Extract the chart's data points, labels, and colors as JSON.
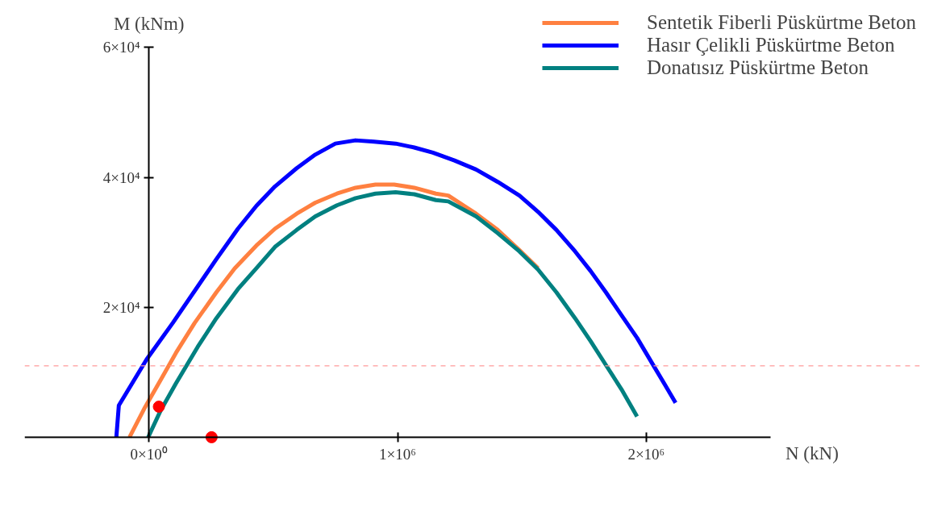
{
  "chart_data": {
    "type": "line",
    "xlabel": "N (kN)",
    "ylabel": "M (kNm)",
    "xlim": [
      -500000,
      2500000
    ],
    "ylim": [
      0,
      60000
    ],
    "xticks": [
      {
        "value": 0,
        "label": "0×10⁰"
      },
      {
        "value": 1000000,
        "label": "1×10⁶"
      },
      {
        "value": 2000000,
        "label": "2×10⁶"
      }
    ],
    "yticks": [
      {
        "value": 20000,
        "label": "2×10⁴"
      },
      {
        "value": 40000,
        "label": "4×10⁴"
      },
      {
        "value": 60000,
        "label": "6×10⁴"
      }
    ],
    "grid": false,
    "legend": "top right",
    "marker": "none",
    "line_style": "solid",
    "series": [
      {
        "name": "Sentetik Fiberli Püskürtme Beton",
        "color": "#ff8040",
        "x": [
          -78000,
          -16000,
          47000,
          109000,
          184000,
          271000,
          345000,
          432000,
          507000,
          594000,
          669000,
          756000,
          831000,
          911000,
          986000,
          1067000,
          1154000,
          1204000,
          1316000,
          1403000,
          1490000,
          1565000
        ],
        "values": [
          0,
          4600,
          8800,
          13000,
          17600,
          22300,
          26000,
          29500,
          32100,
          34400,
          36100,
          37500,
          38400,
          38900,
          38900,
          38400,
          37500,
          37200,
          34400,
          31900,
          28800,
          26000
        ]
      },
      {
        "name": "Hasır Çelikli Püskürtme Beton",
        "color": "#0000ff",
        "x": [
          -131000,
          -121000,
          -9000,
          96000,
          196000,
          271000,
          358000,
          432000,
          507000,
          594000,
          669000,
          750000,
          831000,
          905000,
          992000,
          1067000,
          1142000,
          1229000,
          1316000,
          1403000,
          1490000,
          1565000,
          1639000,
          1714000,
          1776000,
          1838000,
          1900000,
          1963000,
          2025000,
          2075000,
          2118000
        ],
        "values": [
          0,
          4900,
          12000,
          17600,
          23200,
          27400,
          32100,
          35600,
          38600,
          41400,
          43500,
          45200,
          45700,
          45500,
          45200,
          44600,
          43800,
          42600,
          41200,
          39300,
          37200,
          34700,
          31900,
          28600,
          25600,
          22300,
          18800,
          15300,
          11300,
          8100,
          5300
        ]
      },
      {
        "name": "Donatısız Püskürtme Beton",
        "color": "#008080",
        "x": [
          -3000,
          47000,
          109000,
          196000,
          271000,
          358000,
          432000,
          507000,
          594000,
          669000,
          756000,
          831000,
          911000,
          992000,
          1067000,
          1154000,
          1204000,
          1316000,
          1403000,
          1490000,
          1565000,
          1639000,
          1714000,
          1776000,
          1838000,
          1900000,
          1963000
        ],
        "values": [
          0,
          4100,
          8300,
          13900,
          18300,
          22800,
          26000,
          29300,
          31900,
          34000,
          35700,
          36800,
          37500,
          37700,
          37400,
          36500,
          36300,
          34000,
          31400,
          28600,
          25800,
          22300,
          18300,
          14800,
          11100,
          7400,
          3200
        ]
      },
      {
        "type": "scatter",
        "color": "#ff0000",
        "marker": "circle",
        "x": [
          40000,
          252000
        ],
        "values": [
          4700,
          0
        ]
      }
    ],
    "ref_lines": [
      {
        "axis": "y",
        "value": 11000,
        "label": null,
        "color": "#ff9999",
        "line_style": "dashed"
      }
    ]
  }
}
